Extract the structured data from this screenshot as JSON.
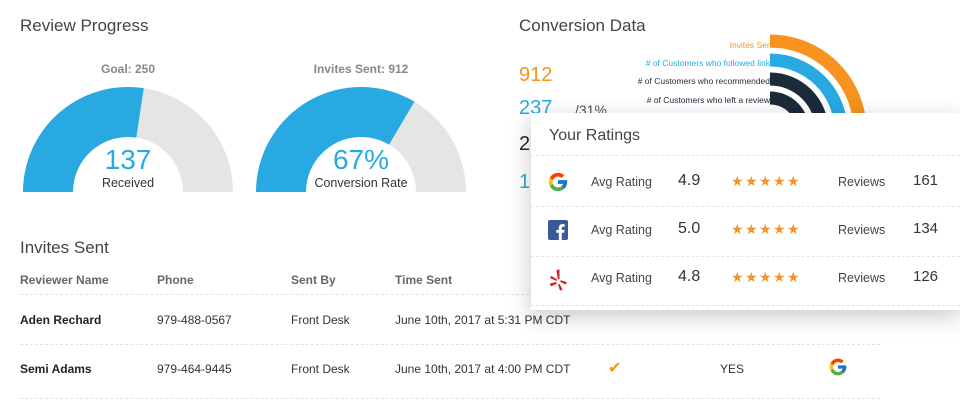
{
  "review_progress": {
    "title": "Review Progress",
    "goal": {
      "label": "Goal: 250",
      "value": "137",
      "sub": "Received",
      "fraction": 0.548
    },
    "invites": {
      "label": "Invites Sent: 912",
      "value": "67%",
      "sub": "Conversion Rate",
      "fraction": 0.67
    }
  },
  "invites_sent": {
    "title": "Invites Sent",
    "headers": [
      "Reviewer Name",
      "Phone",
      "Sent By",
      "Time Sent"
    ],
    "rows": [
      {
        "name": "Aden Rechard",
        "phone": "979-488-0567",
        "sent_by": "Front Desk",
        "time": "June 10th, 2017 at 5:31 PM CDT",
        "check": "",
        "yes": ""
      },
      {
        "name": "Semi Adams",
        "phone": "979-464-9445",
        "sent_by": "Front Desk",
        "time": "June 10th, 2017 at 4:00 PM CDT",
        "check": "✔",
        "yes": "YES"
      }
    ]
  },
  "conversion": {
    "title": "Conversion Data",
    "numbers": [
      "912",
      "237",
      "2",
      "1"
    ],
    "pct": "/31%",
    "arcs": [
      {
        "label": "Invites Sent",
        "color": "#f7931e"
      },
      {
        "label": "# of Customers who followed link",
        "color": "#29a9e1"
      },
      {
        "label": "# of Customers who recommended",
        "color": "#1c2b3a"
      },
      {
        "label": "# of Customers who left a review",
        "color": "#1c2b3a"
      }
    ]
  },
  "ratings": {
    "title": "Your Ratings",
    "rows": [
      {
        "platform": "google",
        "avg_label": "Avg Rating",
        "score": "4.9",
        "stars": 4.9,
        "reviews_label": "Reviews",
        "count": "161"
      },
      {
        "platform": "facebook",
        "avg_label": "Avg Rating",
        "score": "5.0",
        "stars": 5.0,
        "reviews_label": "Reviews",
        "count": "134"
      },
      {
        "platform": "yelp",
        "avg_label": "Avg Rating",
        "score": "4.8",
        "stars": 4.8,
        "reviews_label": "Reviews",
        "count": "126"
      }
    ]
  },
  "colors": {
    "accent": "#29a9e1",
    "gauge_bg": "#e5e5e5",
    "star": "#f7931e",
    "navy": "#1c2b3a"
  }
}
